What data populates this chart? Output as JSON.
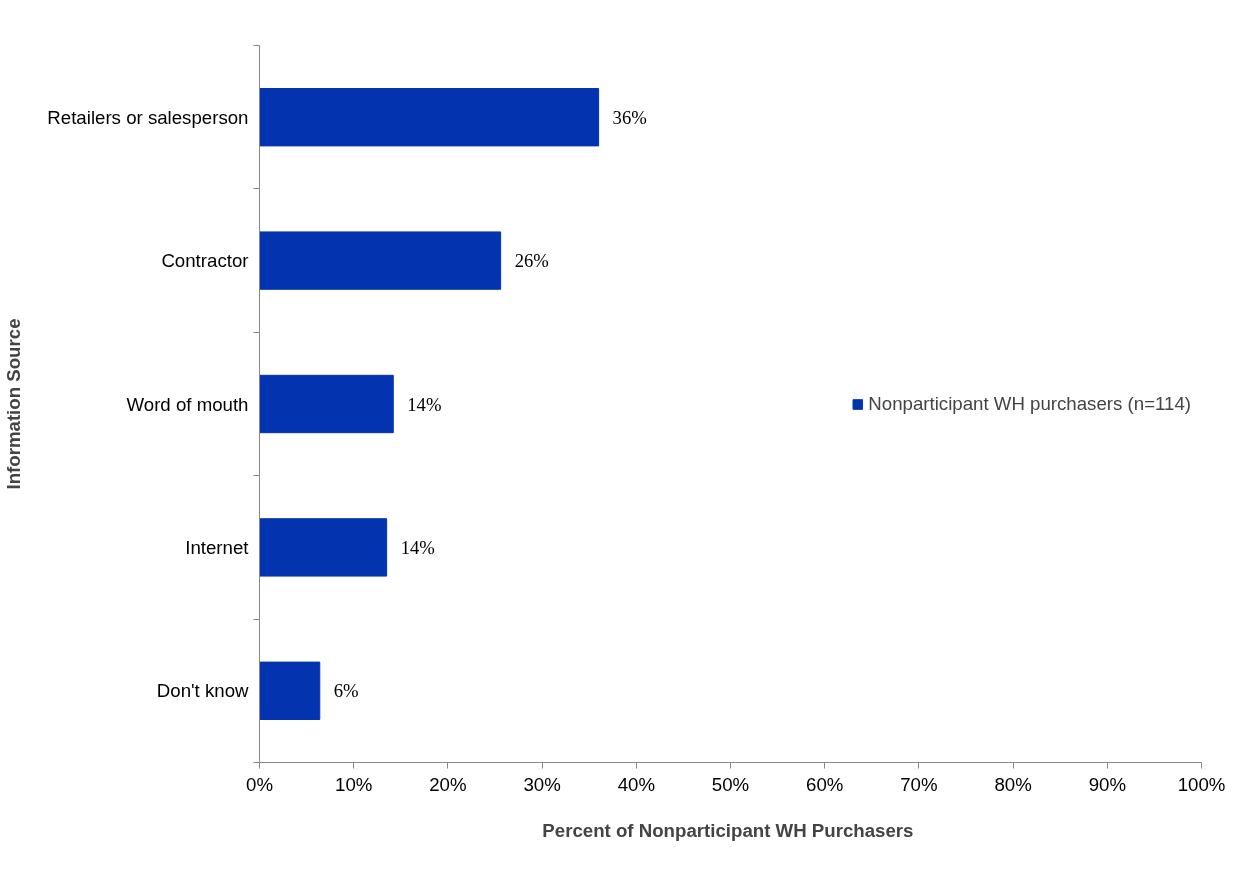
{
  "chart_data": {
    "type": "bar",
    "orientation": "horizontal",
    "xlabel": "Percent of Nonparticipant  WH Purchasers",
    "ylabel": "Information Source",
    "categories": [
      "Retailers or salesperson",
      "Contractor",
      "Word of mouth",
      "Internet",
      "Don't know"
    ],
    "series": [
      {
        "name": "Nonparticipant WH purchasers (n=114)",
        "color": "#0433b0",
        "values": [
          36.0,
          25.6,
          14.2,
          13.5,
          6.4
        ],
        "value_labels": [
          "36%",
          "26%",
          "14%",
          "14%",
          "6%"
        ]
      }
    ],
    "xlim": [
      0,
      100
    ],
    "xticks": [
      {
        "value": 0,
        "label": "0%"
      },
      {
        "value": 10,
        "label": "10%"
      },
      {
        "value": 20,
        "label": "20%"
      },
      {
        "value": 30,
        "label": "30%"
      },
      {
        "value": 40,
        "label": "40%"
      },
      {
        "value": 50,
        "label": "50%"
      },
      {
        "value": 60,
        "label": "60%"
      },
      {
        "value": 70,
        "label": "70%"
      },
      {
        "value": 80,
        "label": "80%"
      },
      {
        "value": 90,
        "label": "90%"
      },
      {
        "value": 100,
        "label": "100%"
      }
    ],
    "grid": false,
    "legend": "right"
  }
}
